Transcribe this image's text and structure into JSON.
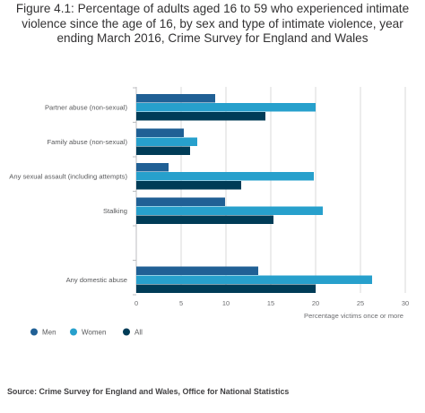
{
  "title": "Figure 4.1: Percentage of adults aged 16 to 59 who experienced intimate violence since the age of 16, by sex and type of intimate violence, year ending March 2016, Crime Survey for England and Wales",
  "source": "Source: Crime Survey for England and Wales, Office for National Statistics",
  "colors": {
    "men": "#206095",
    "women": "#27a0cc",
    "all": "#003c57",
    "grid": "#d9d9d9",
    "axis": "#bcbec0"
  },
  "chart_data": {
    "type": "bar",
    "orientation": "horizontal",
    "categories": [
      "Partner abuse (non-sexual)",
      "Family abuse (non-sexual)",
      "Any sexual assault (including attempts)",
      "Stalking",
      "",
      "Any domestic abuse"
    ],
    "series": [
      {
        "name": "Men",
        "color": "#206095",
        "values": [
          8.8,
          5.3,
          3.6,
          9.9,
          null,
          13.6
        ]
      },
      {
        "name": "Women",
        "color": "#27a0cc",
        "values": [
          20.0,
          6.8,
          19.8,
          20.8,
          null,
          26.3
        ]
      },
      {
        "name": "All",
        "color": "#003c57",
        "values": [
          14.4,
          6.0,
          11.7,
          15.3,
          null,
          20.0
        ]
      }
    ],
    "xlabel": "Percentage victims once or more",
    "xlim": [
      0,
      30
    ],
    "xticks": [
      "0",
      "5",
      "10",
      "15",
      "20",
      "25",
      "30"
    ],
    "grid": true,
    "legend": "bottom-left"
  }
}
